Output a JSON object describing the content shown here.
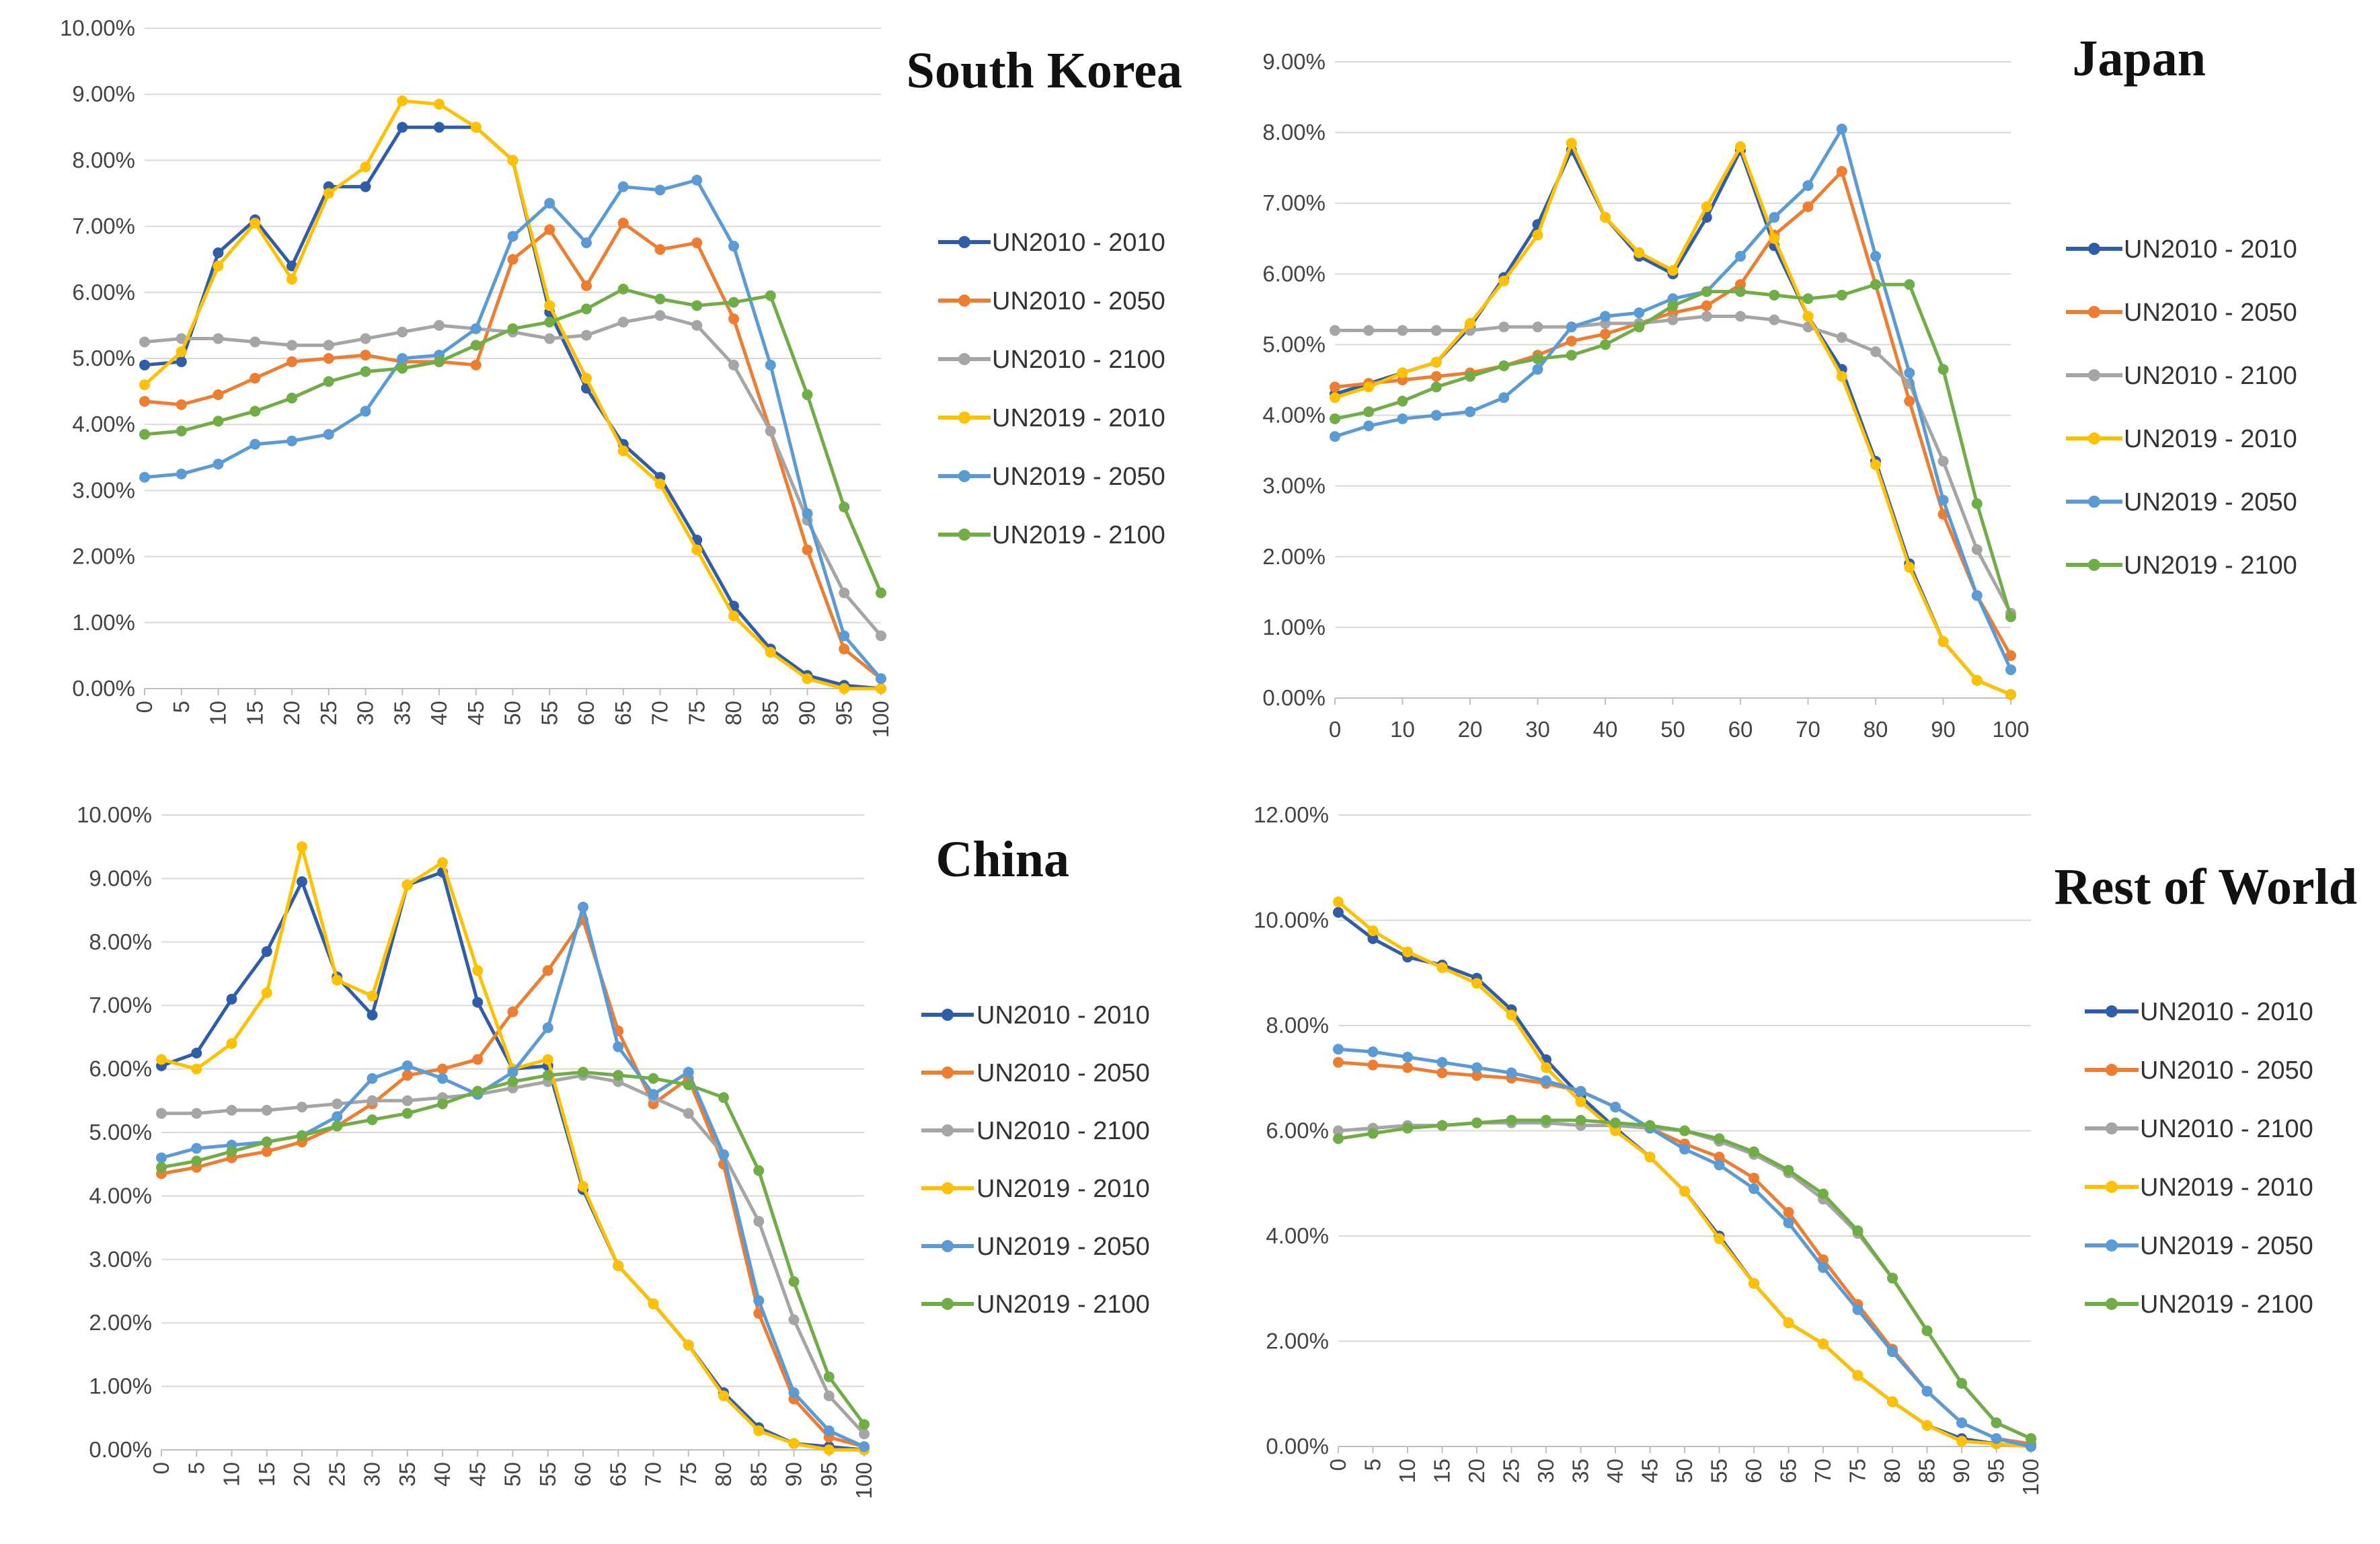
{
  "chart_data": [
    {
      "type": "line",
      "title": "South Korea",
      "x": [
        0,
        5,
        10,
        15,
        20,
        25,
        30,
        35,
        40,
        45,
        50,
        55,
        60,
        65,
        70,
        75,
        80,
        85,
        90,
        95,
        100
      ],
      "y_ticks": [
        "0.00%",
        "1.00%",
        "2.00%",
        "3.00%",
        "4.00%",
        "5.00%",
        "6.00%",
        "7.00%",
        "8.00%",
        "9.00%",
        "10.00%"
      ],
      "x_ticks": [
        "0",
        "5",
        "10",
        "15",
        "20",
        "25",
        "30",
        "35",
        "40",
        "45",
        "50",
        "55",
        "60",
        "65",
        "70",
        "75",
        "80",
        "85",
        "90",
        "95",
        "100"
      ],
      "ylim": [
        0,
        10
      ],
      "series": [
        {
          "name": "UN2010 - 2010",
          "color": "#2F5DA8",
          "values": [
            4.9,
            4.95,
            6.6,
            7.1,
            6.4,
            7.6,
            7.6,
            8.5,
            8.5,
            8.5,
            8.0,
            5.7,
            4.55,
            3.7,
            3.2,
            2.25,
            1.25,
            0.6,
            0.2,
            0.05,
            0.0
          ]
        },
        {
          "name": "UN2010 - 2050",
          "color": "#ED7D31",
          "values": [
            4.35,
            4.3,
            4.45,
            4.7,
            4.95,
            5.0,
            5.05,
            4.95,
            4.95,
            4.9,
            6.5,
            6.95,
            6.1,
            7.05,
            6.65,
            6.75,
            5.6,
            3.9,
            2.1,
            0.6,
            0.15
          ]
        },
        {
          "name": "UN2010 - 2100",
          "color": "#A5A5A5",
          "values": [
            5.25,
            5.3,
            5.3,
            5.25,
            5.2,
            5.2,
            5.3,
            5.4,
            5.5,
            5.45,
            5.4,
            5.3,
            5.35,
            5.55,
            5.65,
            5.5,
            4.9,
            3.9,
            2.55,
            1.45,
            0.8
          ]
        },
        {
          "name": "UN2019 - 2010",
          "color": "#FFC000",
          "values": [
            4.6,
            5.1,
            6.4,
            7.05,
            6.2,
            7.5,
            7.9,
            8.9,
            8.85,
            8.5,
            8.0,
            5.8,
            4.7,
            3.6,
            3.1,
            2.1,
            1.1,
            0.55,
            0.15,
            0.0,
            0.0
          ]
        },
        {
          "name": "UN2019 - 2050",
          "color": "#5B9BD5",
          "values": [
            3.2,
            3.25,
            3.4,
            3.7,
            3.75,
            3.85,
            4.2,
            5.0,
            5.05,
            5.45,
            6.85,
            7.35,
            6.75,
            7.6,
            7.55,
            7.7,
            6.7,
            4.9,
            2.65,
            0.8,
            0.15
          ]
        },
        {
          "name": "UN2019 - 2100",
          "color": "#70AD47",
          "values": [
            3.85,
            3.9,
            4.05,
            4.2,
            4.4,
            4.65,
            4.8,
            4.85,
            4.95,
            5.2,
            5.45,
            5.55,
            5.75,
            6.05,
            5.9,
            5.8,
            5.85,
            5.95,
            4.45,
            2.75,
            1.45
          ]
        }
      ]
    },
    {
      "type": "line",
      "title": "Japan",
      "x": [
        0,
        5,
        10,
        15,
        20,
        25,
        30,
        35,
        40,
        45,
        50,
        55,
        60,
        65,
        70,
        75,
        80,
        85,
        90,
        95,
        100
      ],
      "y_ticks": [
        "0.00%",
        "1.00%",
        "2.00%",
        "3.00%",
        "4.00%",
        "5.00%",
        "6.00%",
        "7.00%",
        "8.00%",
        "9.00%"
      ],
      "x_ticks": [
        "0",
        "10",
        "20",
        "30",
        "40",
        "50",
        "60",
        "70",
        "80",
        "90",
        "100"
      ],
      "ylim": [
        0,
        9
      ],
      "series": [
        {
          "name": "UN2010 - 2010",
          "color": "#2F5DA8",
          "values": [
            4.3,
            4.45,
            4.6,
            4.75,
            5.25,
            5.95,
            6.7,
            7.75,
            6.8,
            6.25,
            6.0,
            6.8,
            7.75,
            6.4,
            5.4,
            4.65,
            3.35,
            1.9,
            0.8,
            0.25,
            0.05
          ]
        },
        {
          "name": "UN2010 - 2050",
          "color": "#ED7D31",
          "values": [
            4.4,
            4.45,
            4.5,
            4.55,
            4.6,
            4.7,
            4.85,
            5.05,
            5.15,
            5.3,
            5.45,
            5.55,
            5.85,
            6.55,
            6.95,
            7.45,
            5.85,
            4.2,
            2.6,
            1.45,
            0.6
          ]
        },
        {
          "name": "UN2010 - 2100",
          "color": "#A5A5A5",
          "values": [
            5.2,
            5.2,
            5.2,
            5.2,
            5.2,
            5.25,
            5.25,
            5.25,
            5.3,
            5.3,
            5.35,
            5.4,
            5.4,
            5.35,
            5.25,
            5.1,
            4.9,
            4.45,
            3.35,
            2.1,
            1.2
          ]
        },
        {
          "name": "UN2019 - 2010",
          "color": "#FFC000",
          "values": [
            4.25,
            4.4,
            4.6,
            4.75,
            5.3,
            5.9,
            6.55,
            7.85,
            6.8,
            6.3,
            6.05,
            6.95,
            7.8,
            6.5,
            5.4,
            4.55,
            3.3,
            1.85,
            0.8,
            0.25,
            0.05
          ]
        },
        {
          "name": "UN2019 - 2050",
          "color": "#5B9BD5",
          "values": [
            3.7,
            3.85,
            3.95,
            4.0,
            4.05,
            4.25,
            4.65,
            5.25,
            5.4,
            5.45,
            5.65,
            5.75,
            6.25,
            6.8,
            7.25,
            8.05,
            6.25,
            4.6,
            2.8,
            1.45,
            0.4
          ]
        },
        {
          "name": "UN2019 - 2100",
          "color": "#70AD47",
          "values": [
            3.95,
            4.05,
            4.2,
            4.4,
            4.55,
            4.7,
            4.8,
            4.85,
            5.0,
            5.25,
            5.55,
            5.75,
            5.75,
            5.7,
            5.65,
            5.7,
            5.85,
            5.85,
            4.65,
            2.75,
            1.15
          ]
        }
      ]
    },
    {
      "type": "line",
      "title": "China",
      "x": [
        0,
        5,
        10,
        15,
        20,
        25,
        30,
        35,
        40,
        45,
        50,
        55,
        60,
        65,
        70,
        75,
        80,
        85,
        90,
        95,
        100
      ],
      "y_ticks": [
        "0.00%",
        "1.00%",
        "2.00%",
        "3.00%",
        "4.00%",
        "5.00%",
        "6.00%",
        "7.00%",
        "8.00%",
        "9.00%",
        "10.00%"
      ],
      "x_ticks": [
        "0",
        "5",
        "10",
        "15",
        "20",
        "25",
        "30",
        "35",
        "40",
        "45",
        "50",
        "55",
        "60",
        "65",
        "70",
        "75",
        "80",
        "85",
        "90",
        "95",
        "100"
      ],
      "ylim": [
        0,
        10
      ],
      "series": [
        {
          "name": "UN2010 - 2010",
          "color": "#2F5DA8",
          "values": [
            6.05,
            6.25,
            7.1,
            7.85,
            8.95,
            7.45,
            6.85,
            8.9,
            9.1,
            7.05,
            6.0,
            6.05,
            4.1,
            2.9,
            2.3,
            1.65,
            0.9,
            0.35,
            0.1,
            0.05,
            0.0
          ]
        },
        {
          "name": "UN2010 - 2050",
          "color": "#ED7D31",
          "values": [
            4.35,
            4.45,
            4.6,
            4.7,
            4.85,
            5.1,
            5.45,
            5.9,
            6.0,
            6.15,
            6.9,
            7.55,
            8.35,
            6.6,
            5.45,
            5.85,
            4.5,
            2.15,
            0.8,
            0.2,
            0.05
          ]
        },
        {
          "name": "UN2010 - 2100",
          "color": "#A5A5A5",
          "values": [
            5.3,
            5.3,
            5.35,
            5.35,
            5.4,
            5.45,
            5.5,
            5.5,
            5.55,
            5.6,
            5.7,
            5.8,
            5.9,
            5.8,
            5.55,
            5.3,
            4.65,
            3.6,
            2.05,
            0.85,
            0.25
          ]
        },
        {
          "name": "UN2019 - 2010",
          "color": "#FFC000",
          "values": [
            6.15,
            6.0,
            6.4,
            7.2,
            9.5,
            7.4,
            7.15,
            8.9,
            9.25,
            7.55,
            6.0,
            6.15,
            4.15,
            2.9,
            2.3,
            1.65,
            0.85,
            0.3,
            0.1,
            0.0,
            0.0
          ]
        },
        {
          "name": "UN2019 - 2050",
          "color": "#5B9BD5",
          "values": [
            4.6,
            4.75,
            4.8,
            4.85,
            4.95,
            5.25,
            5.85,
            6.05,
            5.85,
            5.6,
            5.95,
            6.65,
            8.55,
            6.35,
            5.6,
            5.95,
            4.65,
            2.35,
            0.9,
            0.3,
            0.05
          ]
        },
        {
          "name": "UN2019 - 2100",
          "color": "#70AD47",
          "values": [
            4.45,
            4.55,
            4.7,
            4.85,
            4.95,
            5.1,
            5.2,
            5.3,
            5.45,
            5.65,
            5.8,
            5.9,
            5.95,
            5.9,
            5.85,
            5.75,
            5.55,
            4.4,
            2.65,
            1.15,
            0.4
          ]
        }
      ]
    },
    {
      "type": "line",
      "title": "Rest of World",
      "x": [
        0,
        5,
        10,
        15,
        20,
        25,
        30,
        35,
        40,
        45,
        50,
        55,
        60,
        65,
        70,
        75,
        80,
        85,
        90,
        95,
        100
      ],
      "y_ticks": [
        "0.00%",
        "2.00%",
        "4.00%",
        "6.00%",
        "8.00%",
        "10.00%",
        "12.00%"
      ],
      "x_ticks": [
        "0",
        "5",
        "10",
        "15",
        "20",
        "25",
        "30",
        "35",
        "40",
        "45",
        "50",
        "55",
        "60",
        "65",
        "70",
        "75",
        "80",
        "85",
        "90",
        "95",
        "100"
      ],
      "ylim": [
        0,
        12
      ],
      "series": [
        {
          "name": "UN2010 - 2010",
          "color": "#2F5DA8",
          "values": [
            10.15,
            9.65,
            9.3,
            9.15,
            8.9,
            8.3,
            7.35,
            6.65,
            6.05,
            5.5,
            4.85,
            4.0,
            3.1,
            2.35,
            1.95,
            1.35,
            0.85,
            0.4,
            0.15,
            0.05,
            0.0
          ]
        },
        {
          "name": "UN2010 - 2050",
          "color": "#ED7D31",
          "values": [
            7.3,
            7.25,
            7.2,
            7.1,
            7.05,
            7.0,
            6.9,
            6.75,
            6.45,
            6.05,
            5.75,
            5.5,
            5.1,
            4.45,
            3.55,
            2.7,
            1.85,
            1.05,
            0.45,
            0.15,
            0.05
          ]
        },
        {
          "name": "UN2010 - 2100",
          "color": "#A5A5A5",
          "values": [
            6.0,
            6.05,
            6.1,
            6.1,
            6.15,
            6.15,
            6.15,
            6.1,
            6.1,
            6.05,
            6.0,
            5.8,
            5.55,
            5.2,
            4.7,
            4.05,
            3.2,
            2.2,
            1.2,
            0.45,
            0.15
          ]
        },
        {
          "name": "UN2019 - 2010",
          "color": "#FFC000",
          "values": [
            10.35,
            9.8,
            9.4,
            9.1,
            8.8,
            8.2,
            7.2,
            6.55,
            6.0,
            5.5,
            4.85,
            3.95,
            3.1,
            2.35,
            1.95,
            1.35,
            0.85,
            0.4,
            0.1,
            0.05,
            0.0
          ]
        },
        {
          "name": "UN2019 - 2050",
          "color": "#5B9BD5",
          "values": [
            7.55,
            7.5,
            7.4,
            7.3,
            7.2,
            7.1,
            6.95,
            6.75,
            6.45,
            6.05,
            5.65,
            5.35,
            4.9,
            4.25,
            3.4,
            2.6,
            1.8,
            1.05,
            0.45,
            0.15,
            0.0
          ]
        },
        {
          "name": "UN2019 - 2100",
          "color": "#70AD47",
          "values": [
            5.85,
            5.95,
            6.05,
            6.1,
            6.15,
            6.2,
            6.2,
            6.2,
            6.15,
            6.1,
            6.0,
            5.85,
            5.6,
            5.25,
            4.8,
            4.1,
            3.2,
            2.2,
            1.2,
            0.45,
            0.15
          ]
        }
      ]
    }
  ]
}
